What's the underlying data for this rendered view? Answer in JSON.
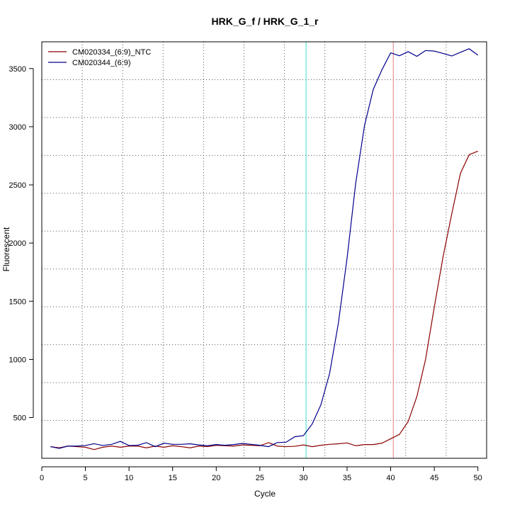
{
  "chart_data": {
    "type": "line",
    "title": "HRK_G_f / HRK_G_1_r",
    "xlabel": "Cycle",
    "ylabel": "Fluorescent",
    "xlim": [
      0,
      51
    ],
    "ylim": [
      150,
      3730
    ],
    "x_ticks": [
      0,
      5,
      10,
      15,
      20,
      25,
      30,
      35,
      40,
      45,
      50
    ],
    "y_ticks": [
      500,
      1000,
      1500,
      2000,
      2500,
      3000,
      3500
    ],
    "grid": true,
    "legend_position": "top-left",
    "threshold_lines": [
      {
        "x": 30.3,
        "color": "#40e0d0"
      },
      {
        "x": 40.3,
        "color": "#e08080"
      }
    ],
    "series": [
      {
        "name": "CM020334_(6:9)_NTC",
        "color": "#8b0000",
        "x": [
          1,
          2,
          3,
          4,
          5,
          6,
          7,
          8,
          9,
          10,
          11,
          12,
          13,
          14,
          15,
          16,
          17,
          18,
          19,
          20,
          21,
          22,
          23,
          24,
          25,
          26,
          27,
          28,
          29,
          30,
          31,
          32,
          33,
          34,
          35,
          36,
          37,
          38,
          39,
          40,
          41,
          42,
          43,
          44,
          45,
          46,
          47,
          48,
          49,
          50
        ],
        "values": [
          250,
          240,
          255,
          250,
          245,
          225,
          245,
          255,
          245,
          255,
          255,
          240,
          255,
          245,
          258,
          250,
          240,
          255,
          250,
          262,
          258,
          255,
          265,
          262,
          258,
          285,
          255,
          250,
          253,
          265,
          250,
          262,
          270,
          275,
          282,
          258,
          268,
          268,
          280,
          318,
          355,
          465,
          680,
          1000,
          1450,
          1880,
          2250,
          2600,
          2760,
          2790
        ]
      },
      {
        "name": "CM020344_(6:9)",
        "color": "#00008b",
        "x": [
          1,
          2,
          3,
          4,
          5,
          6,
          7,
          8,
          9,
          10,
          11,
          12,
          13,
          14,
          15,
          16,
          17,
          18,
          19,
          20,
          21,
          22,
          23,
          24,
          25,
          26,
          27,
          28,
          29,
          30,
          31,
          32,
          33,
          34,
          35,
          36,
          37,
          38,
          39,
          40,
          41,
          42,
          43,
          44,
          45,
          46,
          47,
          48,
          49,
          50
        ],
        "values": [
          250,
          235,
          255,
          255,
          260,
          275,
          260,
          270,
          295,
          260,
          262,
          285,
          250,
          280,
          270,
          270,
          275,
          265,
          258,
          268,
          262,
          268,
          278,
          270,
          262,
          250,
          285,
          288,
          335,
          345,
          445,
          610,
          880,
          1310,
          1870,
          2520,
          3010,
          3320,
          3490,
          3635,
          3610,
          3645,
          3605,
          3655,
          3650,
          3630,
          3608,
          3640,
          3670,
          3615
        ]
      }
    ]
  }
}
